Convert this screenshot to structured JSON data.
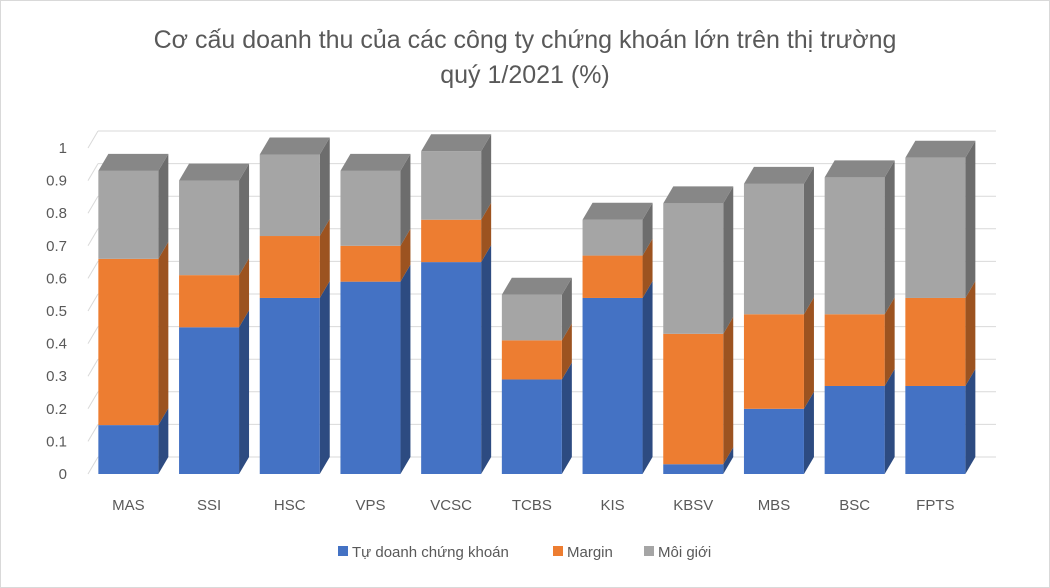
{
  "chart_data": {
    "type": "bar",
    "stacked": true,
    "three_d": true,
    "title_lines": [
      "Cơ cấu doanh thu của các công ty chứng khoán lớn trên thị trường",
      "quý 1/2021 (%)"
    ],
    "categories": [
      "MAS",
      "SSI",
      "HSC",
      "VPS",
      "VCSC",
      "TCBS",
      "KIS",
      "KBSV",
      "MBS",
      "BSC",
      "FPTS"
    ],
    "series": [
      {
        "name": "Tự doanh chứng khoán",
        "color": "#4472c4",
        "values": [
          0.15,
          0.45,
          0.54,
          0.59,
          0.65,
          0.29,
          0.54,
          0.03,
          0.2,
          0.27,
          0.27
        ]
      },
      {
        "name": "Margin",
        "color": "#ed7d31",
        "values": [
          0.51,
          0.16,
          0.19,
          0.11,
          0.13,
          0.12,
          0.13,
          0.4,
          0.29,
          0.22,
          0.27
        ]
      },
      {
        "name": "Môi giới",
        "color": "#a5a5a5",
        "values": [
          0.27,
          0.29,
          0.25,
          0.23,
          0.21,
          0.14,
          0.11,
          0.4,
          0.4,
          0.42,
          0.43
        ]
      }
    ],
    "ylim": [
      0,
      1
    ],
    "yticks": [
      "0",
      "0.1",
      "0.2",
      "0.3",
      "0.4",
      "0.5",
      "0.6",
      "0.7",
      "0.8",
      "0.9",
      "1"
    ],
    "grid": true,
    "legend_position": "bottom"
  }
}
